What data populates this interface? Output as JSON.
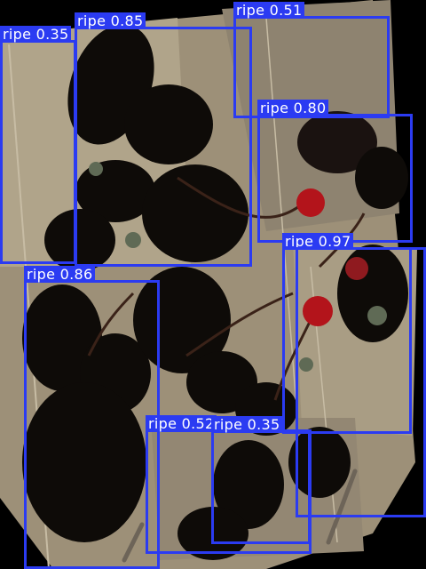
{
  "image": {
    "subject": "strawberry plants with leaves and red fruit on a paper background",
    "colors": {
      "box": "#2b3bf2",
      "label_text": "#ffffff",
      "paper": "#a79a7f",
      "fruit": "#b3141b"
    }
  },
  "detections": [
    {
      "label": "ripe 0.35"
    },
    {
      "label": "ripe 0.85"
    },
    {
      "label": "ripe 0.51"
    },
    {
      "label": "ripe 0.80"
    },
    {
      "label": "ripe 0.97"
    },
    {
      "label": "ripe 0.86"
    },
    {
      "label": "ripe 0.52"
    },
    {
      "label": "ripe 0.35"
    }
  ]
}
